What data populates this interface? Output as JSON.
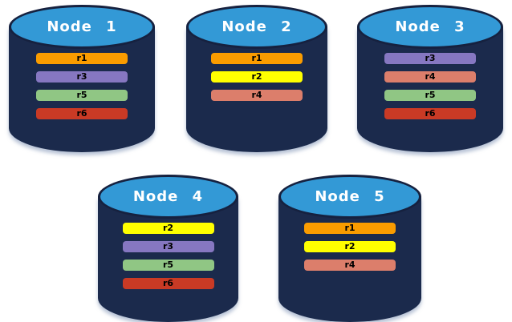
{
  "diagram": {
    "background_color": "#FFFFFF",
    "colors": {
      "cylinder_body": "#1B2A4C",
      "cylinder_top": "#3399D6",
      "cylinder_outline": "#16213F",
      "node_label_text": "#FFFFFF",
      "replica_label_text": "#000000",
      "replicas": {
        "r1": "#FA9C00",
        "r2": "#FFFF00",
        "r3": "#8677C1",
        "r4": "#DC7E6B",
        "r5": "#90C684",
        "r6": "#C93A25"
      }
    },
    "nodes": [
      {
        "label": "Node 1",
        "replicas": [
          "r1",
          "r3",
          "r5",
          "r6"
        ]
      },
      {
        "label": "Node 2",
        "replicas": [
          "r1",
          "r2",
          "r4"
        ]
      },
      {
        "label": "Node 3",
        "replicas": [
          "r3",
          "r4",
          "r5",
          "r6"
        ]
      },
      {
        "label": "Node 4",
        "replicas": [
          "r2",
          "r3",
          "r5",
          "r6"
        ]
      },
      {
        "label": "Node 5",
        "replicas": [
          "r1",
          "r2",
          "r4"
        ]
      }
    ]
  }
}
